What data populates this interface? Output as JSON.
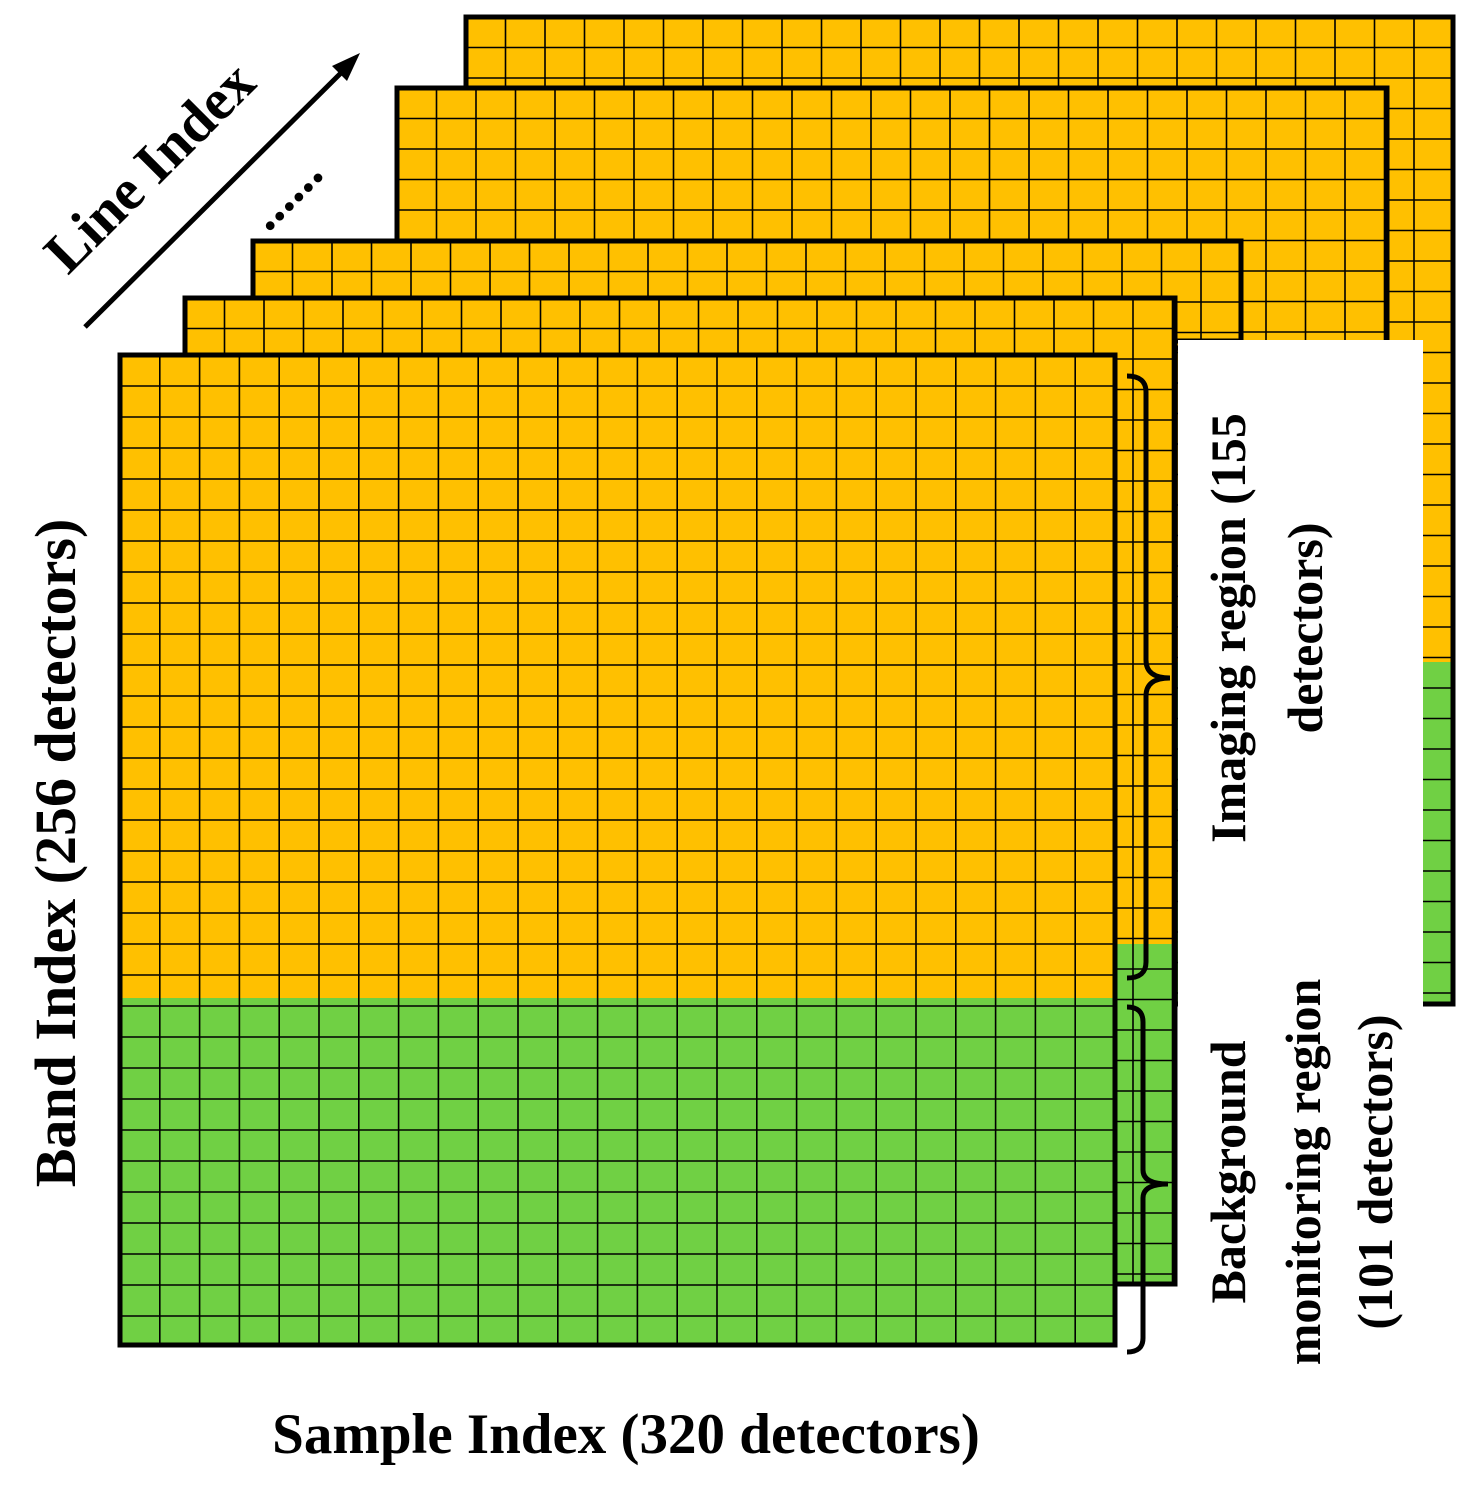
{
  "labels": {
    "line_index": "Line Index",
    "band_index": "Band Index (256 detectors)",
    "sample_index": "Sample Index (320 detectors)",
    "imaging_line1": "Imaging region (155",
    "imaging_line2": "detectors)",
    "background_line1": "Background",
    "background_line2": "monitoring region",
    "background_line3": "(101 detectors)",
    "ellipsis": "......"
  },
  "colors": {
    "imaging": "#FFC000",
    "background": "#70D044",
    "grid": "#000000"
  }
}
